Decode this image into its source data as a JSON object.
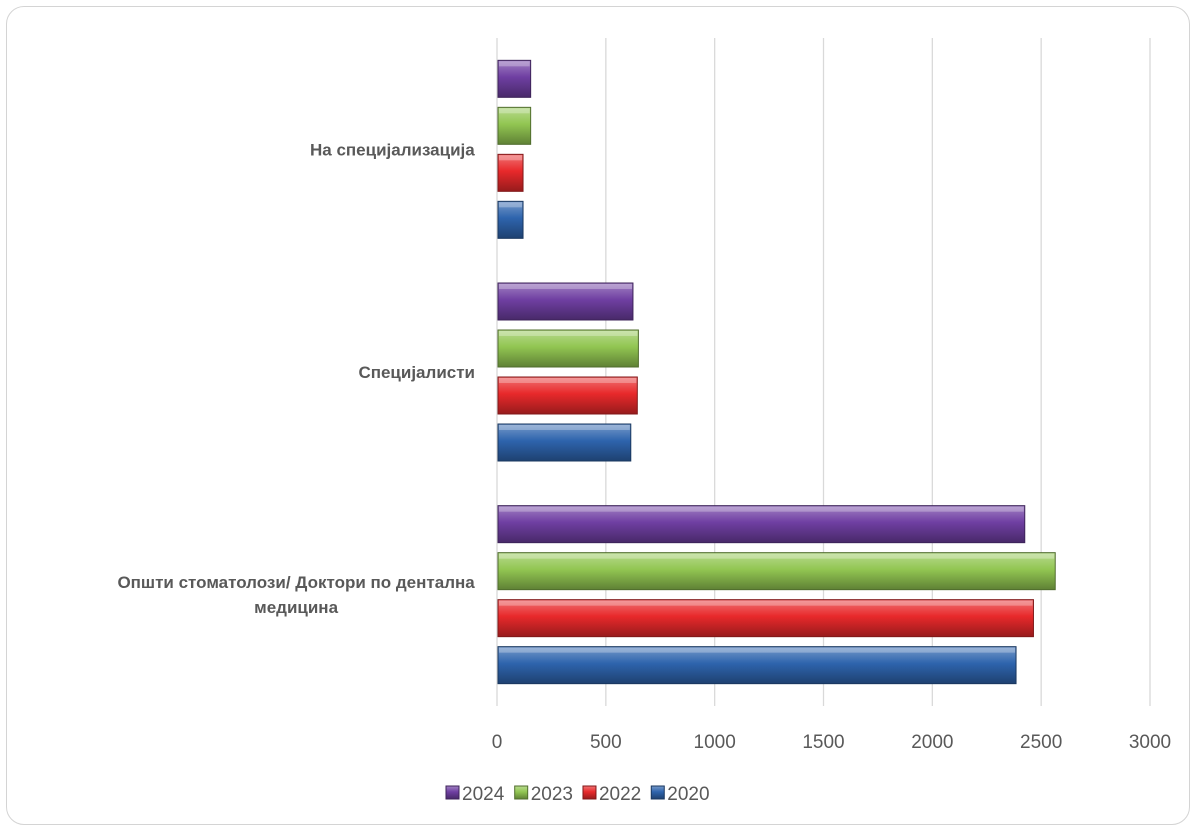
{
  "chart_data": {
    "type": "bar",
    "orientation": "horizontal",
    "title": "",
    "xlabel": "",
    "ylabel": "",
    "categories": [
      "Општи стоматолози/ Доктори по дентална медицина",
      "Специјалисти",
      "На специјализација"
    ],
    "category_label_lines": [
      [
        "Општи стоматолози/ Доктори по дентална",
        "медицина"
      ],
      [
        "Специјалисти"
      ],
      [
        "На специјализација"
      ]
    ],
    "series": [
      {
        "name": "2020",
        "color": "#2e64ad",
        "values": [
          2380,
          610,
          115
        ]
      },
      {
        "name": "2022",
        "color": "#e8292b",
        "values": [
          2460,
          640,
          115
        ]
      },
      {
        "name": "2023",
        "color": "#92c652",
        "values": [
          2560,
          645,
          150
        ]
      },
      {
        "name": "2024",
        "color": "#6f3fa2",
        "values": [
          2420,
          620,
          150
        ]
      }
    ],
    "xlim": [
      0,
      3000
    ],
    "xticks": [
      "0",
      "500",
      "1000",
      "1500",
      "2000",
      "2500",
      "3000"
    ],
    "grid": "vertical",
    "legend_position": "bottom",
    "legend_order": [
      "2024",
      "2023",
      "2022",
      "2020"
    ]
  }
}
